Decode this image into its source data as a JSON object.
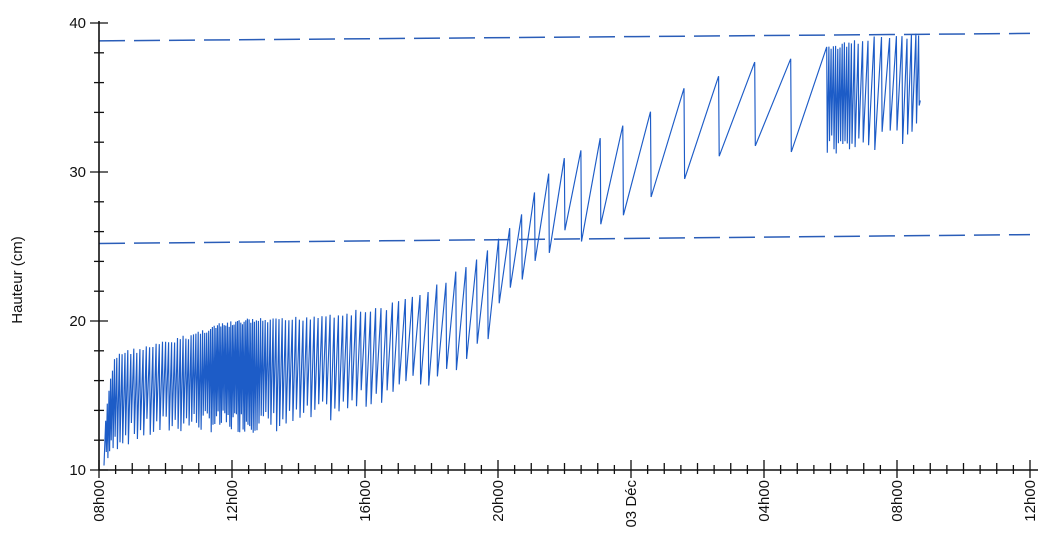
{
  "chart_data": {
    "type": "line",
    "title": "",
    "xlabel": "",
    "ylabel": "Hauteur  (cm)",
    "ylim": [
      10,
      40
    ],
    "xlim_hours": [
      8,
      36
    ],
    "grid": false,
    "y_ticks": [
      {
        "value": 10,
        "label": "10"
      },
      {
        "value": 20,
        "label": "20"
      },
      {
        "value": 30,
        "label": "30"
      },
      {
        "value": 40,
        "label": "40"
      }
    ],
    "x_ticks": [
      {
        "hour": 8,
        "label": "08h00"
      },
      {
        "hour": 12,
        "label": "12h00"
      },
      {
        "hour": 16,
        "label": "16h00"
      },
      {
        "hour": 20,
        "label": "20h00"
      },
      {
        "hour": 24,
        "label": "03 Déc"
      },
      {
        "hour": 28,
        "label": "04h00"
      },
      {
        "hour": 32,
        "label": "08h00"
      },
      {
        "hour": 36,
        "label": "12h00"
      }
    ],
    "reference_lines": [
      {
        "name": "upper",
        "x": [
          8,
          36
        ],
        "y": [
          38.8,
          39.3
        ]
      },
      {
        "name": "lower",
        "x": [
          8,
          36
        ],
        "y": [
          25.2,
          25.8
        ]
      }
    ],
    "series": [
      {
        "color": "#1d5cc7",
        "x": [
          8.15,
          8.3,
          8.45,
          8.6,
          9.5,
          10.5,
          11.5,
          12.5,
          13.5,
          14.5,
          15.5,
          16.5,
          17.5,
          18.5,
          19.5,
          20.0,
          20.5,
          21.0,
          21.5,
          22.0,
          22.5,
          23.0,
          23.5,
          24.0,
          24.5,
          25.0,
          25.5,
          26.0,
          26.5,
          27.0,
          27.5,
          28.0,
          28.5,
          29.0,
          29.5,
          30.0,
          30.5,
          31.0,
          31.5,
          31.8,
          32.0,
          32.3,
          32.5,
          32.65
        ],
        "peak": [
          12.5,
          15.5,
          17.5,
          18.0,
          18.4,
          19.0,
          19.8,
          20.2,
          20.2,
          20.5,
          20.7,
          21.0,
          21.8,
          23.0,
          24.5,
          25.5,
          26.8,
          28.5,
          30.0,
          31.0,
          31.8,
          32.4,
          33.0,
          33.5,
          34.2,
          35.0,
          35.6,
          36.2,
          36.7,
          37.0,
          37.4,
          37.7,
          37.8,
          38.0,
          38.2,
          38.5,
          38.8,
          39.0,
          39.2,
          39.3,
          39.3,
          39.3,
          39.3,
          39.3
        ],
        "trough": [
          10.3,
          10.5,
          11.0,
          11.5,
          12.0,
          12.5,
          12.5,
          12.5,
          12.5,
          13.0,
          13.5,
          14.5,
          15.0,
          16.0,
          18.0,
          20.0,
          22.0,
          23.5,
          24.5,
          25.0,
          25.3,
          26.0,
          26.5,
          27.0,
          27.5,
          28.0,
          28.5,
          29.0,
          29.5,
          30.0,
          30.2,
          30.5,
          30.6,
          30.8,
          30.9,
          31.0,
          31.0,
          31.2,
          31.3,
          31.4,
          31.5,
          32.0,
          32.5,
          33.0
        ],
        "cycle_minutes": [
          3,
          3,
          4,
          5,
          6,
          5,
          3,
          3,
          6,
          7,
          8,
          10,
          14,
          18,
          20,
          20,
          22,
          25,
          28,
          30,
          35,
          40,
          45,
          55,
          60,
          62,
          62,
          65,
          65,
          65,
          65,
          65,
          65,
          65,
          4,
          4,
          4,
          10,
          15,
          12,
          10,
          8,
          8,
          8
        ],
        "last": {
          "x": 32.7,
          "y": 34.8
        }
      }
    ]
  }
}
